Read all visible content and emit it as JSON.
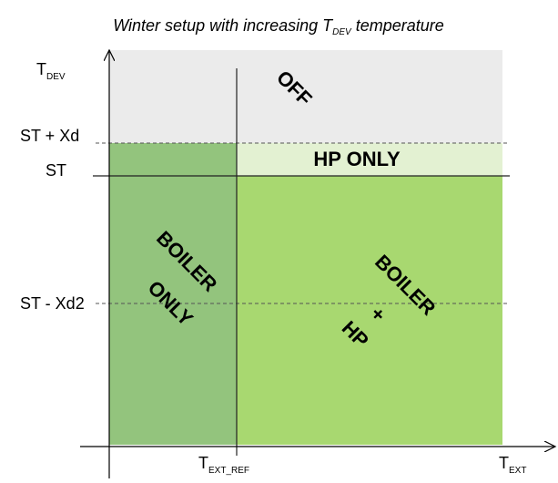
{
  "title": {
    "prefix": "Winter setup with increasing ",
    "symbol": "T",
    "subscript": "DEV",
    "suffix": " temperature"
  },
  "y_axis": {
    "label": {
      "symbol": "T",
      "subscript": "DEV"
    },
    "levels": [
      "ST + Xd",
      "ST",
      "ST - Xd2"
    ]
  },
  "x_axis": {
    "reference": {
      "symbol": "T",
      "subscript": "EXT_REF"
    },
    "label": {
      "symbol": "T",
      "subscript": "EXT"
    }
  },
  "regions": {
    "off": "OFF",
    "hp_only": "HP ONLY",
    "boiler_only": [
      "BOILER",
      "ONLY"
    ],
    "boiler_hp": [
      "BOILER",
      "+",
      "HP"
    ]
  }
}
